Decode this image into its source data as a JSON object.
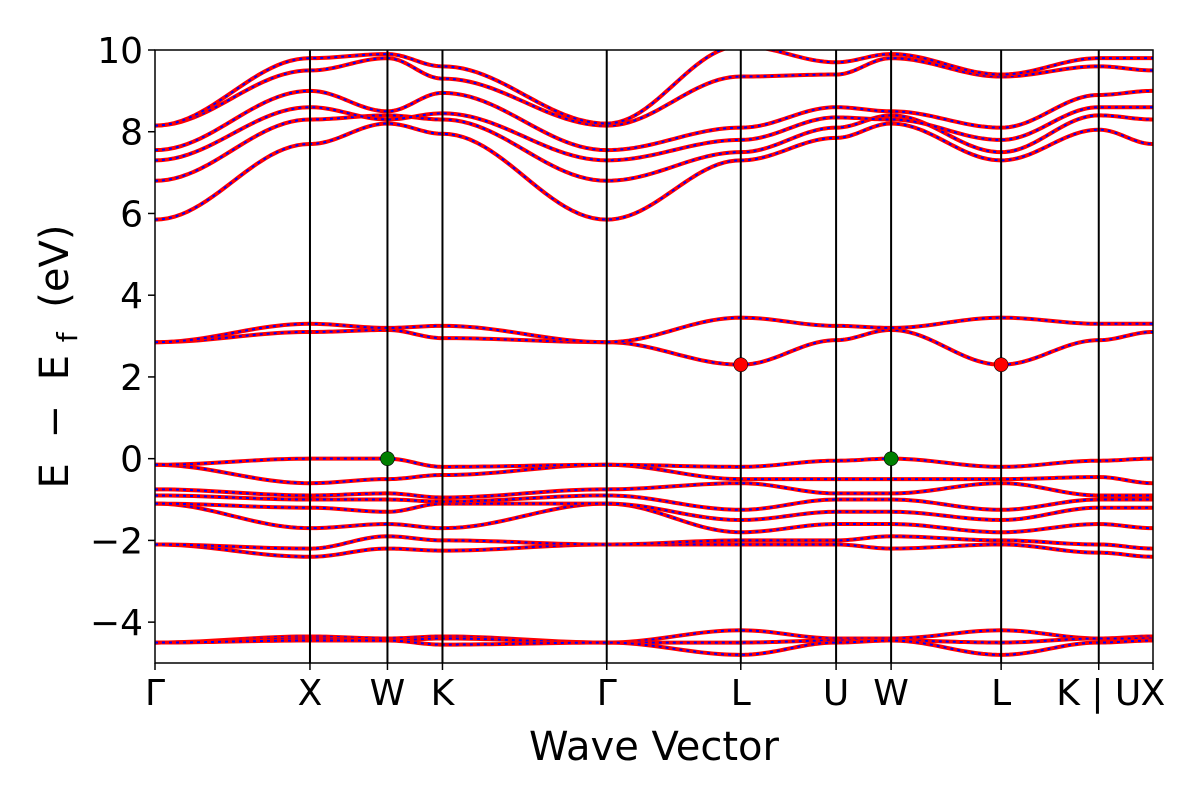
{
  "chart_data": {
    "type": "line",
    "title": "",
    "xlabel": "Wave Vector",
    "ylabel": "E − E_f (eV)",
    "ylabel_parts": {
      "a": "E",
      "minus": "−",
      "b": "E",
      "sub": "f",
      "unit": "(eV)"
    },
    "ylim": [
      -5,
      10
    ],
    "yticks": [
      -4,
      -2,
      0,
      2,
      4,
      6,
      8,
      10
    ],
    "ytick_labels": [
      "−4",
      "−2",
      "0",
      "2",
      "4",
      "6",
      "8",
      "10"
    ],
    "xlim": [
      0,
      6.44
    ],
    "kpoints": [
      {
        "label": "Γ",
        "x": 0
      },
      {
        "label": "X",
        "x": 1.0
      },
      {
        "label": "W",
        "x": 1.5
      },
      {
        "label": "K",
        "x": 1.855
      },
      {
        "label": "Γ",
        "x": 2.915
      },
      {
        "label": "L",
        "x": 3.78
      },
      {
        "label": "U",
        "x": 4.395
      },
      {
        "label": "W",
        "x": 4.75
      },
      {
        "label": "L",
        "x": 5.46
      },
      {
        "label": "K | U",
        "x": 6.09
      },
      {
        "label": "X",
        "x": 6.44
      }
    ],
    "grid": false,
    "series_colors": {
      "primary": "#ff0000",
      "overlay_dash": "#0000ff"
    },
    "marker_colors": {
      "vbm": "#007f00",
      "cbm": "#ff0000"
    },
    "markers": [
      {
        "kind": "vbm",
        "x": 1.5,
        "y": 0.0
      },
      {
        "kind": "vbm",
        "x": 4.75,
        "y": 0.0
      },
      {
        "kind": "cbm",
        "x": 3.78,
        "y": 2.3
      },
      {
        "kind": "cbm",
        "x": 5.46,
        "y": 2.3
      }
    ],
    "bands": [
      [
        -4.5,
        -4.35,
        -4.4,
        -4.35,
        -4.5,
        -4.2,
        -4.4,
        -4.4,
        -4.2,
        -4.4,
        -4.35
      ],
      [
        -4.5,
        -4.4,
        -4.45,
        -4.4,
        -4.5,
        -4.5,
        -4.45,
        -4.45,
        -4.5,
        -4.4,
        -4.4
      ],
      [
        -4.5,
        -4.45,
        -4.45,
        -4.55,
        -4.5,
        -4.8,
        -4.5,
        -4.45,
        -4.8,
        -4.5,
        -4.45
      ],
      [
        -2.1,
        -2.4,
        -2.2,
        -2.25,
        -2.1,
        -2.1,
        -2.1,
        -2.2,
        -2.1,
        -2.3,
        -2.4
      ],
      [
        -2.1,
        -2.2,
        -1.9,
        -2.0,
        -2.1,
        -2.0,
        -2.0,
        -1.9,
        -2.0,
        -2.1,
        -2.2
      ],
      [
        -1.1,
        -1.7,
        -1.6,
        -1.7,
        -1.1,
        -1.8,
        -1.6,
        -1.6,
        -1.8,
        -1.6,
        -1.7
      ],
      [
        -1.1,
        -1.2,
        -1.3,
        -1.1,
        -1.1,
        -1.5,
        -1.3,
        -1.3,
        -1.5,
        -1.2,
        -1.2
      ],
      [
        -0.9,
        -1.0,
        -1.0,
        -1.05,
        -0.9,
        -1.25,
        -1.0,
        -1.0,
        -1.25,
        -1.0,
        -1.0
      ],
      [
        -0.75,
        -0.9,
        -0.85,
        -0.95,
        -0.75,
        -0.6,
        -0.85,
        -0.85,
        -0.6,
        -0.9,
        -0.9
      ],
      [
        -0.15,
        -0.6,
        -0.5,
        -0.4,
        -0.15,
        -0.5,
        -0.5,
        -0.5,
        -0.5,
        -0.45,
        -0.6
      ],
      [
        -0.15,
        0.0,
        0.0,
        -0.2,
        -0.15,
        -0.2,
        -0.05,
        0.0,
        -0.2,
        -0.05,
        0.0
      ],
      [
        2.85,
        3.1,
        3.15,
        2.95,
        2.85,
        2.3,
        2.9,
        3.15,
        2.3,
        2.9,
        3.1
      ],
      [
        2.85,
        3.3,
        3.2,
        3.25,
        2.85,
        3.45,
        3.25,
        3.2,
        3.45,
        3.3,
        3.3
      ],
      [
        5.85,
        7.7,
        8.2,
        7.95,
        5.85,
        7.3,
        7.85,
        8.2,
        7.3,
        8.05,
        7.7
      ],
      [
        6.8,
        8.3,
        8.4,
        8.3,
        6.8,
        7.5,
        8.1,
        8.4,
        7.5,
        8.4,
        8.3
      ],
      [
        7.3,
        8.6,
        8.3,
        8.45,
        7.3,
        7.8,
        8.35,
        8.3,
        7.8,
        8.6,
        8.6
      ],
      [
        7.55,
        9.0,
        8.5,
        8.95,
        7.55,
        8.1,
        8.6,
        8.5,
        8.1,
        8.9,
        9.0
      ],
      [
        8.15,
        9.5,
        9.8,
        9.3,
        8.15,
        9.35,
        9.4,
        9.8,
        9.35,
        9.6,
        9.5
      ],
      [
        8.15,
        9.8,
        9.9,
        9.6,
        8.2,
        10.1,
        9.7,
        9.9,
        9.4,
        9.8,
        9.8
      ]
    ]
  }
}
